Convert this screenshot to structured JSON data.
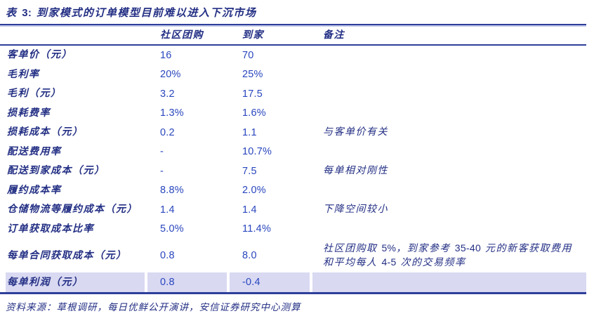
{
  "title": "表 3: 到家模式的订单模型目前难以进入下沉市场",
  "table": {
    "columns": [
      "",
      "社区团购",
      "到家",
      "备注"
    ],
    "rows": [
      {
        "label": "客单价（元）",
        "c1": "16",
        "c2": "70",
        "note": ""
      },
      {
        "label": "毛利率",
        "c1": "20%",
        "c2": "25%",
        "note": ""
      },
      {
        "label": "毛利（元）",
        "c1": "3.2",
        "c2": "17.5",
        "note": ""
      },
      {
        "label": "损耗费率",
        "c1": "1.3%",
        "c2": "1.6%",
        "note": ""
      },
      {
        "label": "损耗成本（元）",
        "c1": "0.2",
        "c2": "1.1",
        "note": "与客单价有关"
      },
      {
        "label": "配送费用率",
        "c1": "-",
        "c2": "10.7%",
        "note": ""
      },
      {
        "label": "配送到家成本（元）",
        "c1": "-",
        "c2": "7.5",
        "note": "每单相对刚性"
      },
      {
        "label": "履约成本率",
        "c1": "8.8%",
        "c2": "2.0%",
        "note": ""
      },
      {
        "label": "仓储物流等履约成本（元）",
        "c1": "1.4",
        "c2": "1.4",
        "note": "下降空间较小"
      },
      {
        "label": "订单获取成本比率",
        "c1": "5.0%",
        "c2": "11.4%",
        "note": ""
      },
      {
        "label": "每单合同获取成本（元）",
        "c1": "0.8",
        "c2": "8.0",
        "note": "社区团购取 5%，到家参考 35-40 元的新客获取费用和平均每人 4-5 次的交易频率"
      },
      {
        "label": "每单利润（元）",
        "c1": "0.8",
        "c2": "-0.4",
        "note": "",
        "highlight": true
      }
    ]
  },
  "source": "资料来源：草根调研，每日优鲜公开演讲，安信证券研究中心测算",
  "colors": {
    "rule_navy": "#2e3f9a",
    "chinese_text": "#232f84",
    "number_text": "#2946be",
    "highlight_row": "#d9d9f2"
  }
}
